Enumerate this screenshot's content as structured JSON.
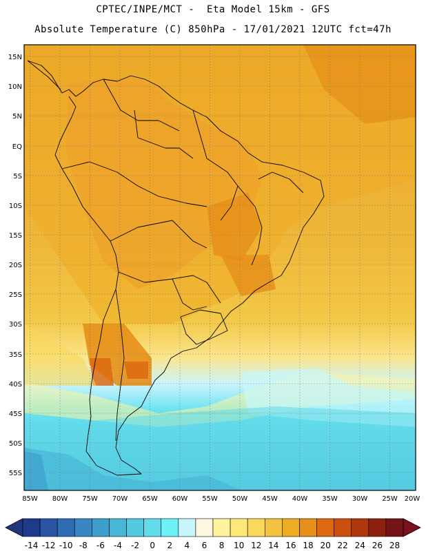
{
  "header": {
    "line1": "CPTEC/INPE/MCT -  Eta Model 15km - GFS",
    "line2": "Absolute Temperature (C) 850hPa - 17/01/2021 12UTC fct=47h"
  },
  "map": {
    "lat_labels": [
      "15N",
      "10N",
      "5N",
      "EQ",
      "5S",
      "10S",
      "15S",
      "20S",
      "25S",
      "30S",
      "35S",
      "40S",
      "45S",
      "50S",
      "55S"
    ],
    "lon_labels": [
      "85W",
      "80W",
      "75W",
      "70W",
      "65W",
      "60W",
      "55W",
      "50W",
      "45W",
      "40W",
      "35W",
      "30W",
      "25W",
      "20W"
    ]
  },
  "colorbar": {
    "labels": [
      "-14",
      "-12",
      "-10",
      "-8",
      "-6",
      "-4",
      "-2",
      "0",
      "2",
      "4",
      "6",
      "8",
      "10",
      "12",
      "14",
      "16",
      "18",
      "20",
      "22",
      "24",
      "26",
      "28"
    ],
    "colors": [
      "#1f3a8a",
      "#2a55a3",
      "#2f6cb3",
      "#3a85c3",
      "#3e9fce",
      "#48b6d6",
      "#55c9e0",
      "#62dbea",
      "#6cf1f7",
      "#c9f6fb",
      "#fdf7e1",
      "#fff49d",
      "#fde97a",
      "#f8d95c",
      "#f3c33f",
      "#eeac25",
      "#e6901a",
      "#dd6a12",
      "#cc4e0e",
      "#b0360b",
      "#8c2110",
      "#741416"
    ],
    "end_left": "#21367e",
    "end_right": "#7a1020"
  }
}
